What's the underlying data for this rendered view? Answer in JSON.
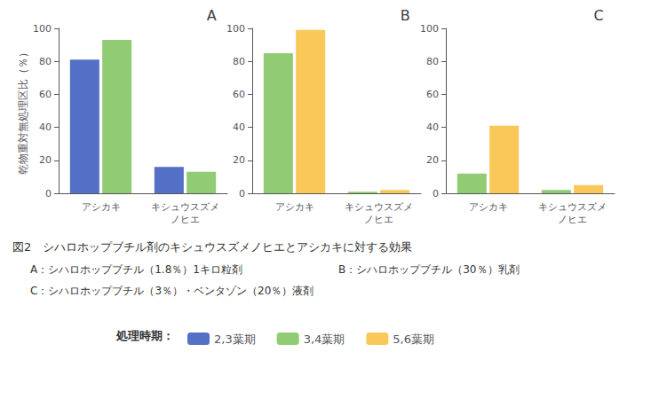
{
  "chart_data": [
    {
      "type": "bar",
      "title": "A",
      "ylabel": "乾物重対無処理区比（％）",
      "categories": [
        "アシカキ",
        "キシュウスズメ\nノヒエ"
      ],
      "series": [
        {
          "name": "2,3葉期",
          "color": "#5470c6",
          "values": [
            81,
            16
          ]
        },
        {
          "name": "3,4葉期",
          "color": "#91cc75",
          "values": [
            93,
            13
          ]
        }
      ],
      "ylim": [
        0,
        100
      ],
      "yticks": [
        0,
        20,
        40,
        60,
        80,
        100
      ],
      "grid": false,
      "legend": "bottom",
      "legend_title": "処理時期：",
      "annotations": [
        "図2   シハロホップブチル剤のキシュウスズメノヒエとアシカキに対する効果",
        "A：シハロホップブチル（1.8％）1キロ粒剤",
        "B：シハロホップブチル（30％）乳剤",
        "C：シハロホップブチル（3％）・ベンタゾン（20％）液剤"
      ]
    },
    {
      "type": "bar",
      "title": "B",
      "categories": [
        "アシカキ",
        "キシュウスズメ\nノヒエ"
      ],
      "series": [
        {
          "name": "3,4葉期",
          "color": "#91cc75",
          "values": [
            85,
            1
          ]
        },
        {
          "name": "5,6葉期",
          "color": "#fac858",
          "values": [
            99,
            2
          ]
        }
      ],
      "ylim": [
        0,
        100
      ],
      "yticks": [
        0,
        20,
        40,
        60,
        80,
        100
      ],
      "grid": false
    },
    {
      "type": "bar",
      "title": "C",
      "categories": [
        "アシカキ",
        "キシュウスズメ\nノヒエ"
      ],
      "series": [
        {
          "name": "3,4葉期",
          "color": "#91cc75",
          "values": [
            12,
            2
          ]
        },
        {
          "name": "5,6葉期",
          "color": "#fac858",
          "values": [
            41,
            5
          ]
        }
      ],
      "ylim": [
        0,
        100
      ],
      "yticks": [
        0,
        20,
        40,
        60,
        80,
        100
      ],
      "grid": false
    }
  ]
}
